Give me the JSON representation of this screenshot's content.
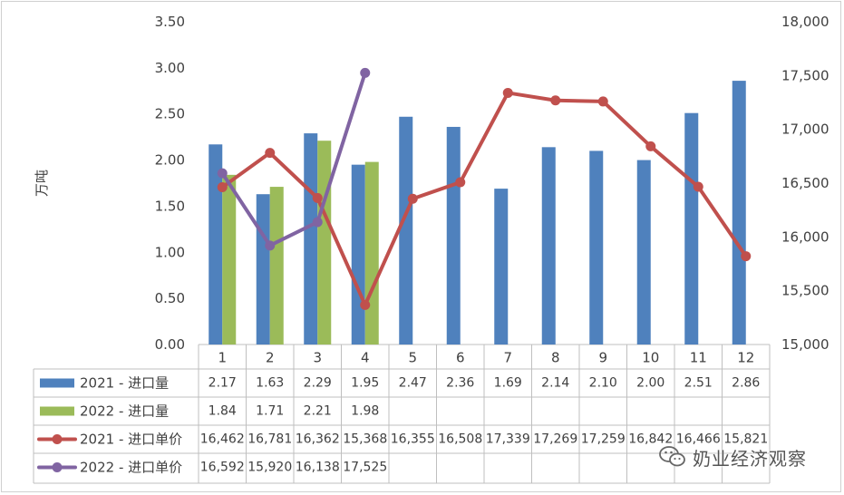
{
  "chart_data": {
    "type": "bar",
    "categories": [
      "1",
      "2",
      "3",
      "4",
      "5",
      "6",
      "7",
      "8",
      "9",
      "10",
      "11",
      "12"
    ],
    "ylabel": "万吨",
    "ylim": [
      0,
      3.5
    ],
    "y_ticks": [
      "0.00",
      "0.50",
      "1.00",
      "1.50",
      "2.00",
      "2.50",
      "3.00",
      "3.50"
    ],
    "y2lim": [
      15000,
      18000
    ],
    "y2_ticks": [
      "15,000",
      "15,500",
      "16,000",
      "16,500",
      "17,000",
      "17,500",
      "18,000"
    ],
    "grid": false,
    "legend": "data-table",
    "bar_series": [
      {
        "name": "2021 - 进口量",
        "color": "#4f81bd",
        "values": [
          2.17,
          1.63,
          2.29,
          1.95,
          2.47,
          2.36,
          1.69,
          2.14,
          2.1,
          2.0,
          2.51,
          2.86
        ],
        "labels": [
          "2.17",
          "1.63",
          "2.29",
          "1.95",
          "2.47",
          "2.36",
          "1.69",
          "2.14",
          "2.10",
          "2.00",
          "2.51",
          "2.86"
        ]
      },
      {
        "name": "2022 - 进口量",
        "color": "#9bbb59",
        "values": [
          1.84,
          1.71,
          2.21,
          1.98
        ],
        "labels": [
          "1.84",
          "1.71",
          "2.21",
          "1.98"
        ]
      }
    ],
    "line_series": [
      {
        "name": "2021 - 进口单价",
        "color": "#c0504d",
        "axis": "right",
        "values": [
          16462,
          16781,
          16362,
          15368,
          16355,
          16508,
          17339,
          17269,
          17259,
          16842,
          16466,
          15821
        ],
        "labels": [
          "16,462",
          "16,781",
          "16,362",
          "15,368",
          "16,355",
          "16,508",
          "17,339",
          "17,269",
          "17,259",
          "16,842",
          "16,466",
          "15,821"
        ]
      },
      {
        "name": "2022 - 进口单价",
        "color": "#8064a2",
        "axis": "right",
        "values": [
          16592,
          15920,
          16138,
          17525
        ],
        "labels": [
          "16,592",
          "15,920",
          "16,138",
          "17,525"
        ]
      }
    ]
  },
  "watermark": {
    "text": "奶业经济观察",
    "icon": "wechat-icon"
  }
}
